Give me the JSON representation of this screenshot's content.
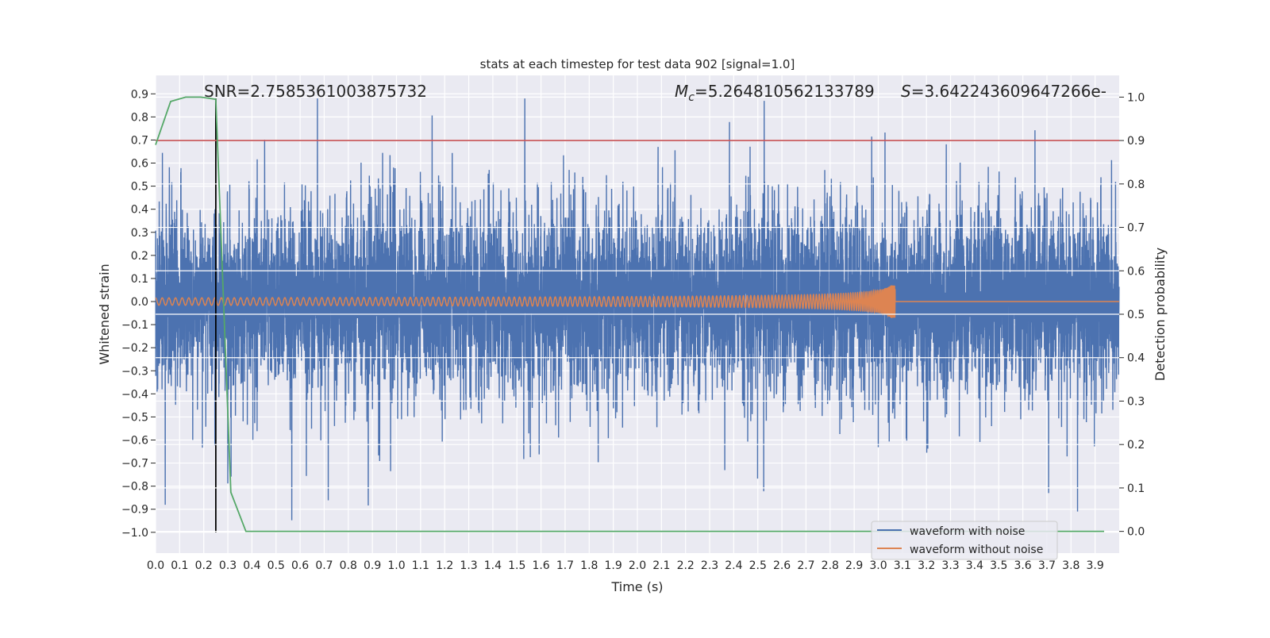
{
  "chart_data": {
    "type": "line",
    "title": "stats at each timestep for test data 902 [signal=1.0]",
    "xlabel": "Time (s)",
    "ylabel": "Whitened strain",
    "y2label": "Detection probability",
    "xlim": [
      0.0,
      4.0
    ],
    "ylim": [
      -1.09,
      0.98
    ],
    "y2lim": [
      -0.05,
      1.05
    ],
    "grid": true,
    "xticks": [
      "0.0",
      "0.1",
      "0.2",
      "0.3",
      "0.4",
      "0.5",
      "0.6",
      "0.7",
      "0.8",
      "0.9",
      "1.0",
      "1.1",
      "1.2",
      "1.3",
      "1.4",
      "1.5",
      "1.6",
      "1.7",
      "1.8",
      "1.9",
      "2.0",
      "2.1",
      "2.2",
      "2.3",
      "2.4",
      "2.5",
      "2.6",
      "2.7",
      "2.8",
      "2.9",
      "3.0",
      "3.1",
      "3.2",
      "3.3",
      "3.4",
      "3.5",
      "3.6",
      "3.7",
      "3.8",
      "3.9"
    ],
    "yticks": [
      "0.9",
      "0.8",
      "0.7",
      "0.6",
      "0.5",
      "0.4",
      "0.3",
      "0.2",
      "0.1",
      "0.0",
      "−0.1",
      "−0.2",
      "−0.3",
      "−0.4",
      "−0.5",
      "−0.6",
      "−0.7",
      "−0.8",
      "−0.9",
      "−1.0"
    ],
    "y2ticks": [
      "1.0",
      "0.9",
      "0.8",
      "0.7",
      "0.6",
      "0.5",
      "0.4",
      "0.3",
      "0.2",
      "0.1",
      "0.0"
    ],
    "annotations": {
      "snr": "SNR=2.7585361003875732",
      "mc_symbol": "M",
      "mc_sub": "c",
      "mc_value": "=5.264810562133789",
      "s_symbol": "S",
      "s_value": "=3.642243609647266e-"
    },
    "legend": {
      "placement": "lower-right",
      "entries": [
        "waveform with noise",
        "waveform without noise"
      ]
    },
    "series": [
      {
        "name": "waveform with noise",
        "axis": "left",
        "color": "#4c72b0",
        "description_range": [
          -1.0,
          0.88
        ]
      },
      {
        "name": "waveform without noise",
        "axis": "left",
        "color": "#dd8452",
        "merger_time": 3.07,
        "peak_amplitude": 0.07
      },
      {
        "axis": "right",
        "color": "#55a868",
        "x_step": 0.0625,
        "values": [
          0.89,
          0.99,
          1.0,
          1.0,
          0.995,
          0.09,
          0,
          0,
          0,
          0,
          0,
          0,
          0,
          0,
          0,
          0,
          0,
          0,
          0,
          0,
          0,
          0,
          0,
          0,
          0,
          0,
          0,
          0,
          0,
          0,
          0,
          0,
          0,
          0,
          0,
          0,
          0,
          0,
          0,
          0,
          0,
          0,
          0,
          0,
          0,
          0,
          0,
          0,
          0,
          0,
          0,
          0,
          0,
          0,
          0,
          0,
          0,
          0,
          0,
          0,
          0,
          0,
          0,
          0
        ]
      }
    ],
    "threshold": {
      "axis": "right",
      "value": 0.9,
      "color": "#c44e52"
    },
    "vline": {
      "x": 0.25,
      "ymin": -1.0,
      "ymax": 0.88,
      "color": "#000000"
    }
  }
}
